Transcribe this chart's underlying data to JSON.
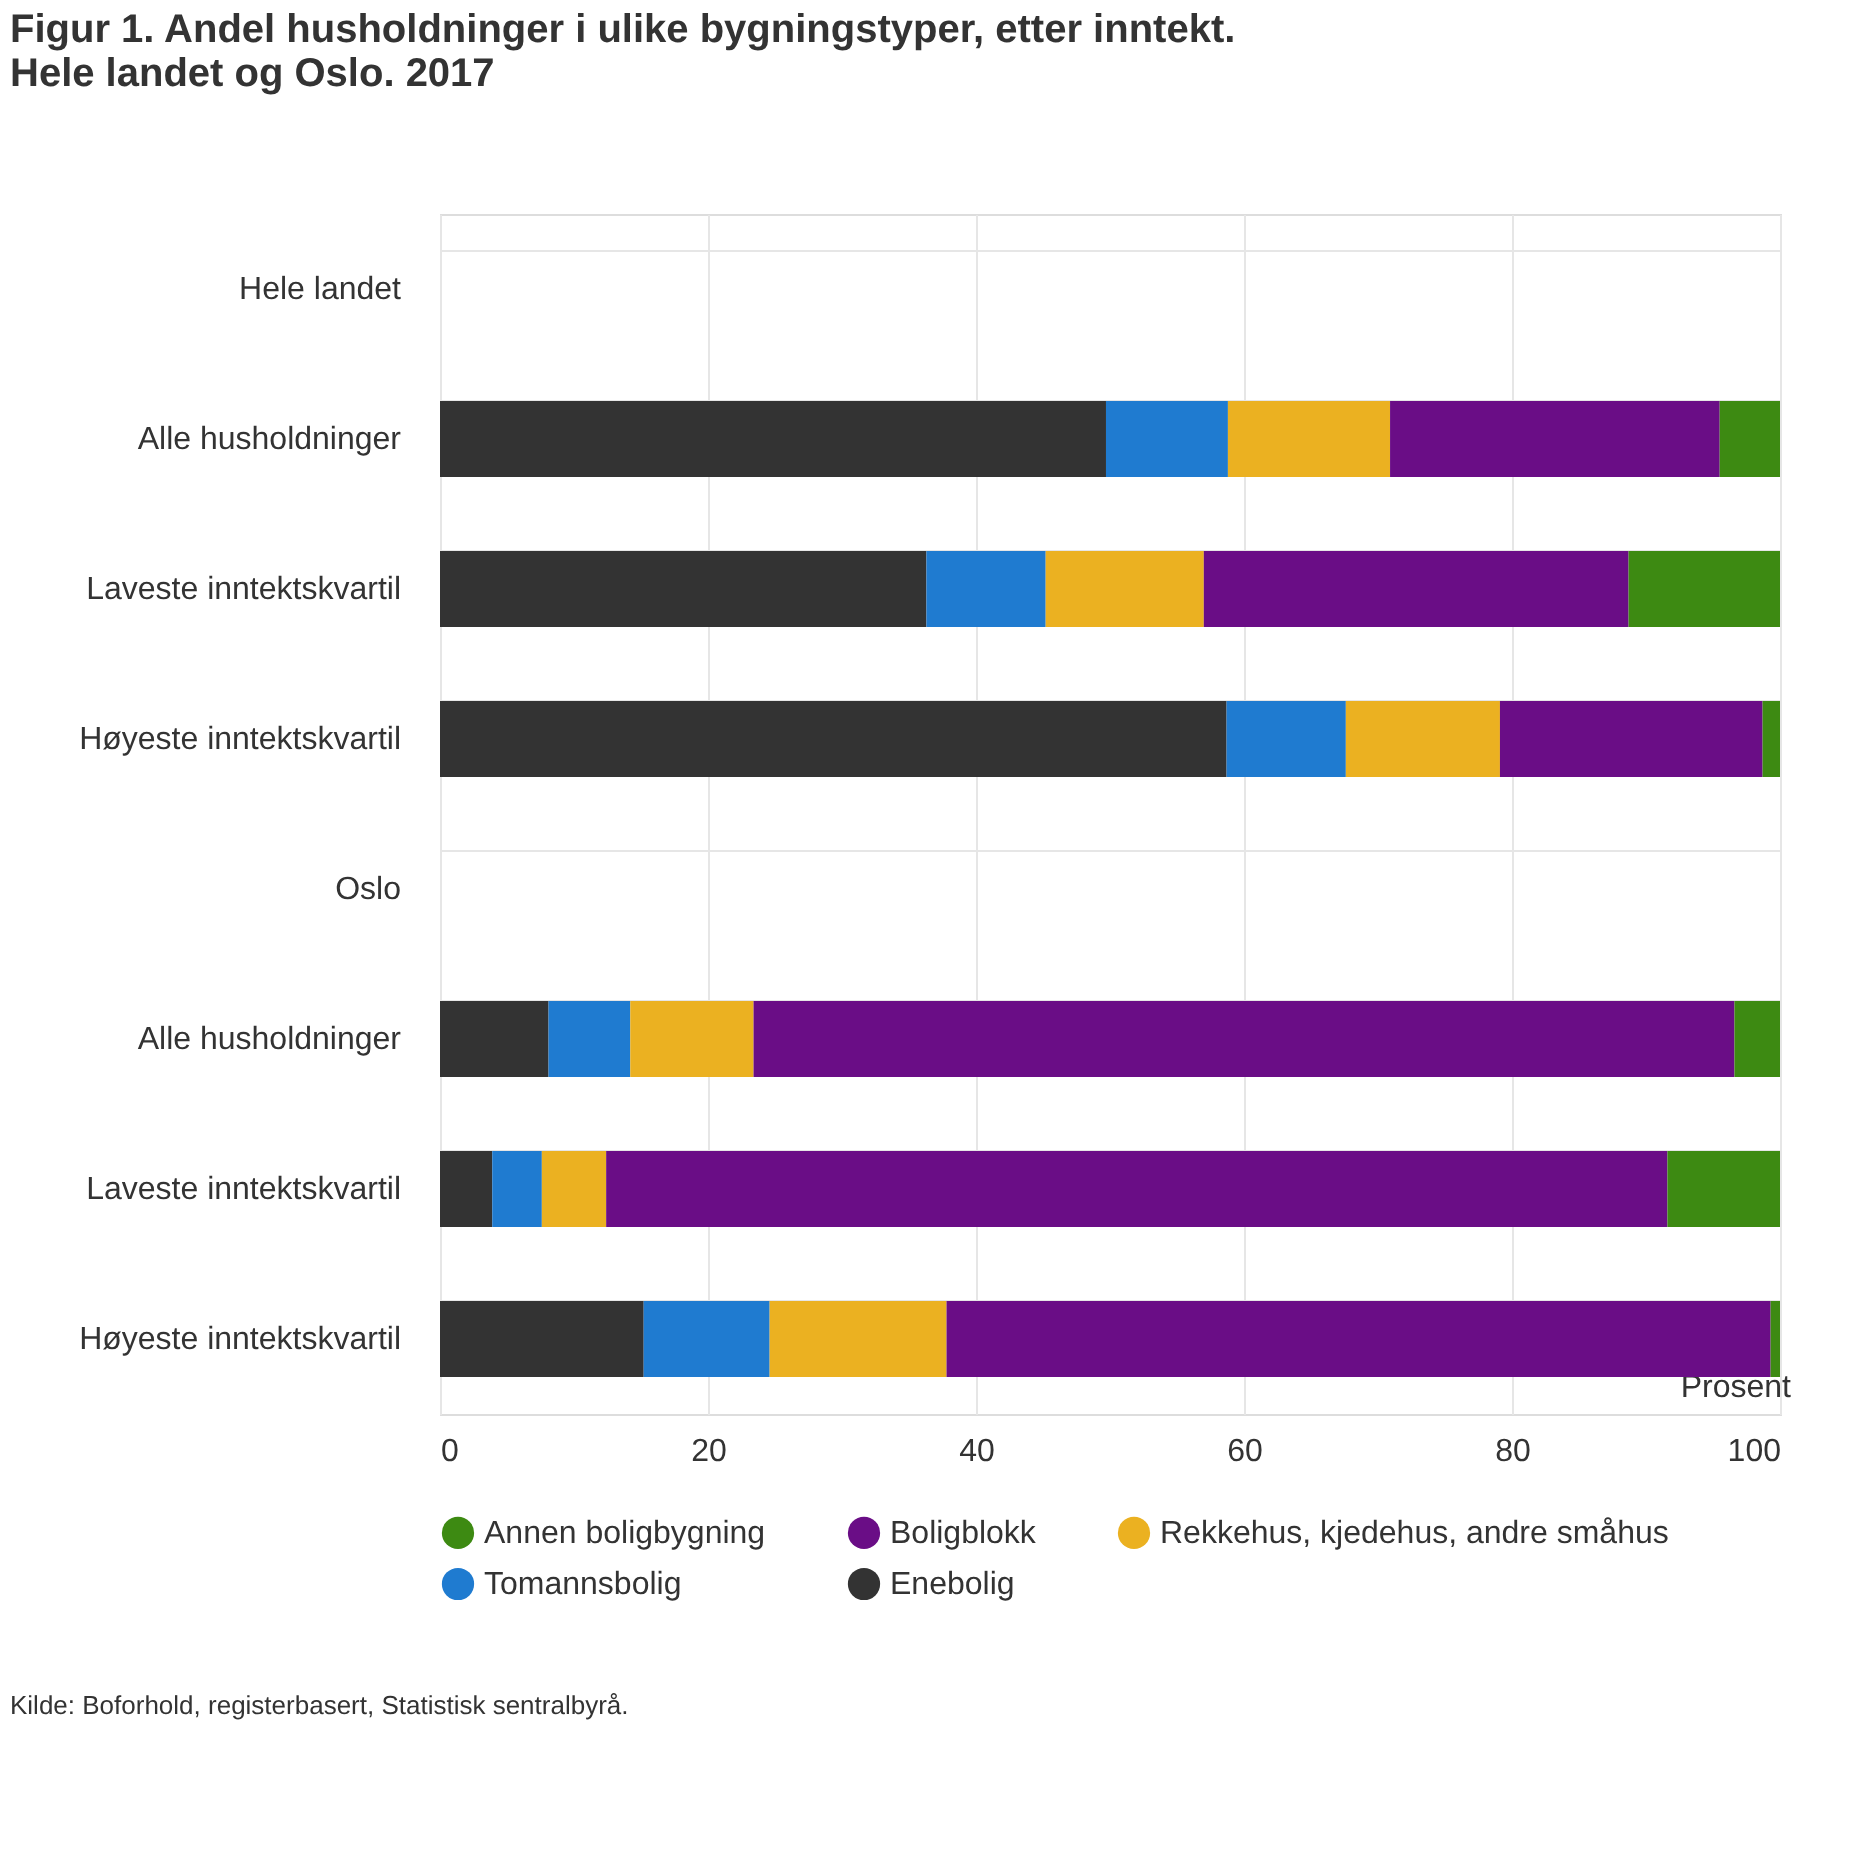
{
  "chart_data": {
    "type": "bar",
    "orientation": "horizontal",
    "stacked": true,
    "title": "Figur 1. Andel husholdninger i ulike bygningstyper, etter inntekt. Hele landet og Oslo. 2017",
    "xlabel": "Prosent",
    "categories": [
      "Hele landet",
      "Alle husholdninger",
      "Laveste inntektskvartil",
      "Høyeste inntektskvartil",
      "Oslo",
      "Alle husholdninger",
      "Laveste inntektskvartil",
      "Høyeste inntektskvartil"
    ],
    "series": [
      {
        "name": "Enebolig",
        "color": "#333333",
        "values": [
          null,
          49.7,
          36.3,
          58.7,
          null,
          8.1,
          3.9,
          15.2
        ]
      },
      {
        "name": "Tomannsbolig",
        "color": "#1f7bd0",
        "values": [
          null,
          9.1,
          8.9,
          8.9,
          null,
          6.1,
          3.7,
          9.4
        ]
      },
      {
        "name": "Rekkehus, kjedehus, andre småhus",
        "color": "#ebb121",
        "values": [
          null,
          12.1,
          11.8,
          11.5,
          null,
          9.2,
          4.8,
          13.2
        ]
      },
      {
        "name": "Boligblokk",
        "color": "#6a0d86",
        "values": [
          null,
          24.6,
          31.7,
          19.6,
          null,
          73.2,
          79.2,
          61.5
        ]
      },
      {
        "name": "Annen boligbygning",
        "color": "#3d8a12",
        "values": [
          null,
          4.5,
          11.3,
          1.3,
          null,
          3.4,
          8.4,
          0.7
        ]
      }
    ],
    "xlim": [
      0,
      100
    ],
    "xticks": [
      0,
      20,
      40,
      60,
      80,
      100
    ],
    "grid": true,
    "legend": "bottom",
    "annotations": [
      "Kilde: Boforhold, registerbasert, Statistisk sentralbyrå."
    ]
  }
}
